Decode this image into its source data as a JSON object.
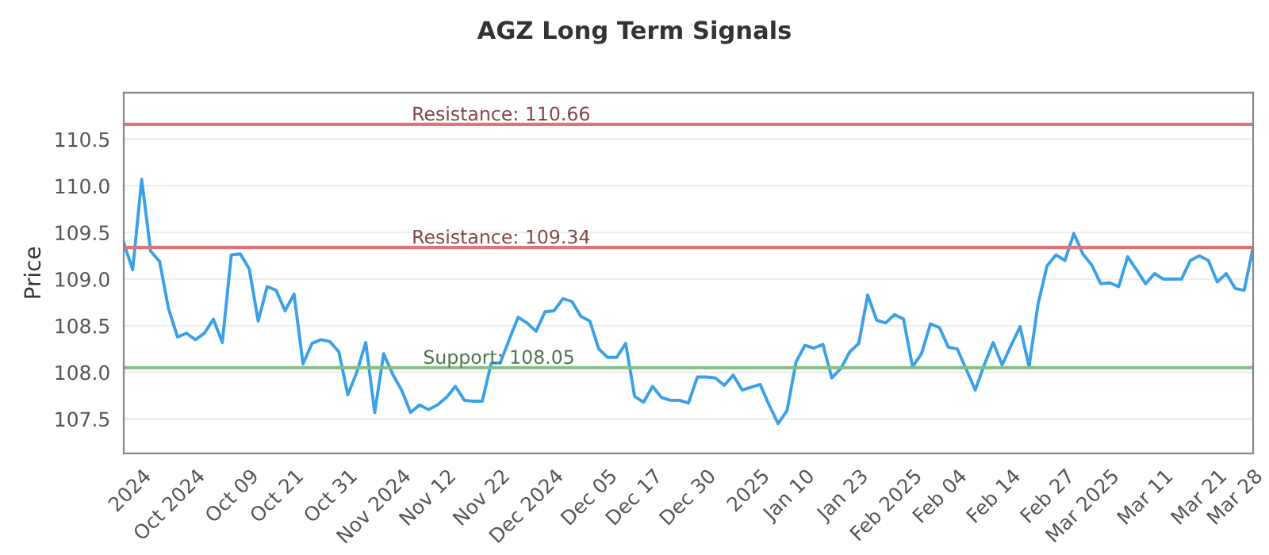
{
  "chart_data": {
    "type": "line",
    "title": "AGZ Long Term Signals",
    "ylabel": "Price",
    "categories": [
      null,
      null,
      "2024",
      null,
      null,
      null,
      null,
      null,
      "Oct 2024",
      null,
      null,
      null,
      null,
      null,
      "Oct 09",
      null,
      null,
      null,
      null,
      "Oct 21",
      null,
      null,
      null,
      null,
      null,
      "Oct 31",
      null,
      null,
      null,
      null,
      null,
      "Nov 2024",
      null,
      null,
      null,
      null,
      "Nov 12",
      null,
      null,
      null,
      null,
      null,
      "Nov 22",
      null,
      null,
      null,
      null,
      null,
      "Dec 2024",
      null,
      null,
      null,
      null,
      null,
      "Dec 05",
      null,
      null,
      null,
      null,
      "Dec 17",
      null,
      null,
      null,
      null,
      null,
      "Dec 30",
      null,
      null,
      null,
      null,
      null,
      "2025",
      null,
      null,
      null,
      null,
      "Jan 10",
      null,
      null,
      null,
      null,
      null,
      "Jan 23",
      null,
      null,
      null,
      null,
      null,
      "Feb 2025",
      null,
      null,
      null,
      null,
      "Feb 04",
      null,
      null,
      null,
      null,
      null,
      "Feb 14",
      null,
      null,
      null,
      null,
      null,
      "Feb 27",
      null,
      null,
      null,
      null,
      "Mar 2025",
      null,
      null,
      null,
      null,
      null,
      "Mar 11",
      null,
      null,
      null,
      null,
      null,
      "Mar 21",
      null,
      null,
      null,
      "Mar 28"
    ],
    "series": [
      {
        "color": "#3aa0e8",
        "values": [
          109.39,
          109.1,
          110.07,
          109.3,
          109.19,
          108.68,
          108.38,
          108.42,
          108.35,
          108.42,
          108.57,
          108.32,
          109.26,
          109.27,
          109.11,
          108.55,
          108.92,
          108.88,
          108.66,
          108.84,
          108.09,
          108.31,
          108.35,
          108.33,
          108.22,
          107.76,
          108.0,
          108.32,
          107.57,
          108.2,
          107.98,
          107.81,
          107.57,
          107.65,
          107.6,
          107.65,
          107.73,
          107.85,
          107.7,
          107.69,
          107.69,
          108.1,
          108.1,
          108.35,
          108.59,
          108.53,
          108.44,
          108.65,
          108.66,
          108.79,
          108.76,
          108.6,
          108.55,
          108.25,
          108.16,
          108.16,
          108.31,
          107.74,
          107.68,
          107.85,
          107.73,
          107.7,
          107.7,
          107.67,
          107.95,
          107.95,
          107.94,
          107.86,
          107.97,
          107.81,
          107.84,
          107.87,
          107.65,
          107.45,
          107.59,
          108.11,
          108.29,
          108.26,
          108.3,
          107.94,
          108.04,
          108.22,
          108.31,
          108.83,
          108.56,
          108.53,
          108.62,
          108.57,
          108.06,
          108.2,
          108.52,
          108.48,
          108.27,
          108.25,
          108.03,
          107.81,
          108.08,
          108.32,
          108.08,
          108.29,
          108.49,
          108.06,
          108.73,
          109.14,
          109.26,
          109.2,
          109.49,
          109.27,
          109.15,
          108.95,
          108.96,
          108.92,
          109.24,
          109.1,
          108.95,
          109.06,
          109.0,
          109.0,
          109.0,
          109.2,
          109.25,
          109.2,
          108.97,
          109.06,
          108.9,
          108.88,
          109.34
        ]
      }
    ],
    "ylim": [
      107.13,
      111.0
    ],
    "yticks": [
      107.5,
      {
        "value": 108,
        "label": "108.0"
      },
      108.5,
      {
        "value": 109,
        "label": "109.0"
      },
      109.5,
      {
        "value": 110,
        "label": "110.0"
      },
      110.5
    ],
    "grid": "y",
    "line_style": "solid",
    "ref_lines": [
      {
        "axis": "y",
        "value": 110.66,
        "label": "Resistance: 110.66",
        "color": "#d9777a"
      },
      {
        "axis": "y",
        "value": 109.34,
        "label": "Resistance: 109.34",
        "color": "#d9777a"
      },
      {
        "axis": "y",
        "value": 108.05,
        "label": "Support: 108.05",
        "color": "#7fbf7f"
      }
    ]
  }
}
